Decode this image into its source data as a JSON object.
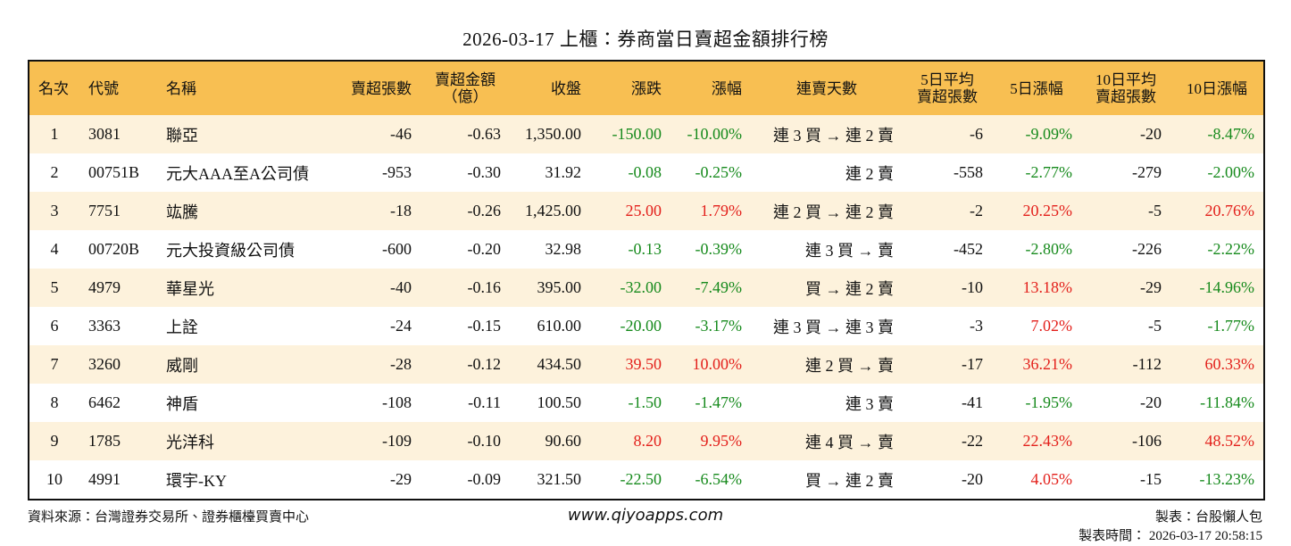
{
  "header": {
    "title": "2026-03-17 上櫃：券商當日賣超金額排行榜"
  },
  "table": {
    "headers": [
      "名次",
      "代號",
      "名稱",
      "賣超張數",
      "賣超金額\n（億）",
      "收盤",
      "漲跌",
      "漲幅",
      "連賣天數",
      "5日平均\n賣超張數",
      "5日漲幅",
      "10日平均\n賣超張數",
      "10日漲幅"
    ],
    "rows": [
      [
        "1",
        "3081",
        "聯亞",
        "-46",
        "-0.63",
        "1,350.00",
        "-150.00",
        "-10.00%",
        "連 3 買 → 連 2 賣",
        "-6",
        "-9.09%",
        "-20",
        "-8.47%"
      ],
      [
        "2",
        "00751B",
        "元大AAA至A公司債",
        "-953",
        "-0.30",
        "31.92",
        "-0.08",
        "-0.25%",
        "連 2 賣",
        "-558",
        "-2.77%",
        "-279",
        "-2.00%"
      ],
      [
        "3",
        "7751",
        "竑騰",
        "-18",
        "-0.26",
        "1,425.00",
        "25.00",
        "1.79%",
        "連 2 買 → 連 2 賣",
        "-2",
        "20.25%",
        "-5",
        "20.76%"
      ],
      [
        "4",
        "00720B",
        "元大投資級公司債",
        "-600",
        "-0.20",
        "32.98",
        "-0.13",
        "-0.39%",
        "連 3 買 → 賣",
        "-452",
        "-2.80%",
        "-226",
        "-2.22%"
      ],
      [
        "5",
        "4979",
        "華星光",
        "-40",
        "-0.16",
        "395.00",
        "-32.00",
        "-7.49%",
        "買 → 連 2 賣",
        "-10",
        "13.18%",
        "-29",
        "-14.96%"
      ],
      [
        "6",
        "3363",
        "上詮",
        "-24",
        "-0.15",
        "610.00",
        "-20.00",
        "-3.17%",
        "連 3 買 → 連 3 賣",
        "-3",
        "7.02%",
        "-5",
        "-1.77%"
      ],
      [
        "7",
        "3260",
        "威剛",
        "-28",
        "-0.12",
        "434.50",
        "39.50",
        "10.00%",
        "連 2 買 → 賣",
        "-17",
        "36.21%",
        "-112",
        "60.33%"
      ],
      [
        "8",
        "6462",
        "神盾",
        "-108",
        "-0.11",
        "100.50",
        "-1.50",
        "-1.47%",
        "連 3 賣",
        "-41",
        "-1.95%",
        "-20",
        "-11.84%"
      ],
      [
        "9",
        "1785",
        "光洋科",
        "-109",
        "-0.10",
        "90.60",
        "8.20",
        "9.95%",
        "連 4 買 → 賣",
        "-22",
        "22.43%",
        "-106",
        "48.52%"
      ],
      [
        "10",
        "4991",
        "環宇-KY",
        "-29",
        "-0.09",
        "321.50",
        "-22.50",
        "-6.54%",
        "買 → 連 2 賣",
        "-20",
        "4.05%",
        "-15",
        "-13.23%"
      ]
    ]
  },
  "footer": {
    "source": "資料來源：台灣證券交易所、證券櫃檯買賣中心",
    "site": "www.qiyoapps.com",
    "maker": "製表：台股懶人包",
    "time": "製表時間： 2026-03-17 20:58:15"
  }
}
